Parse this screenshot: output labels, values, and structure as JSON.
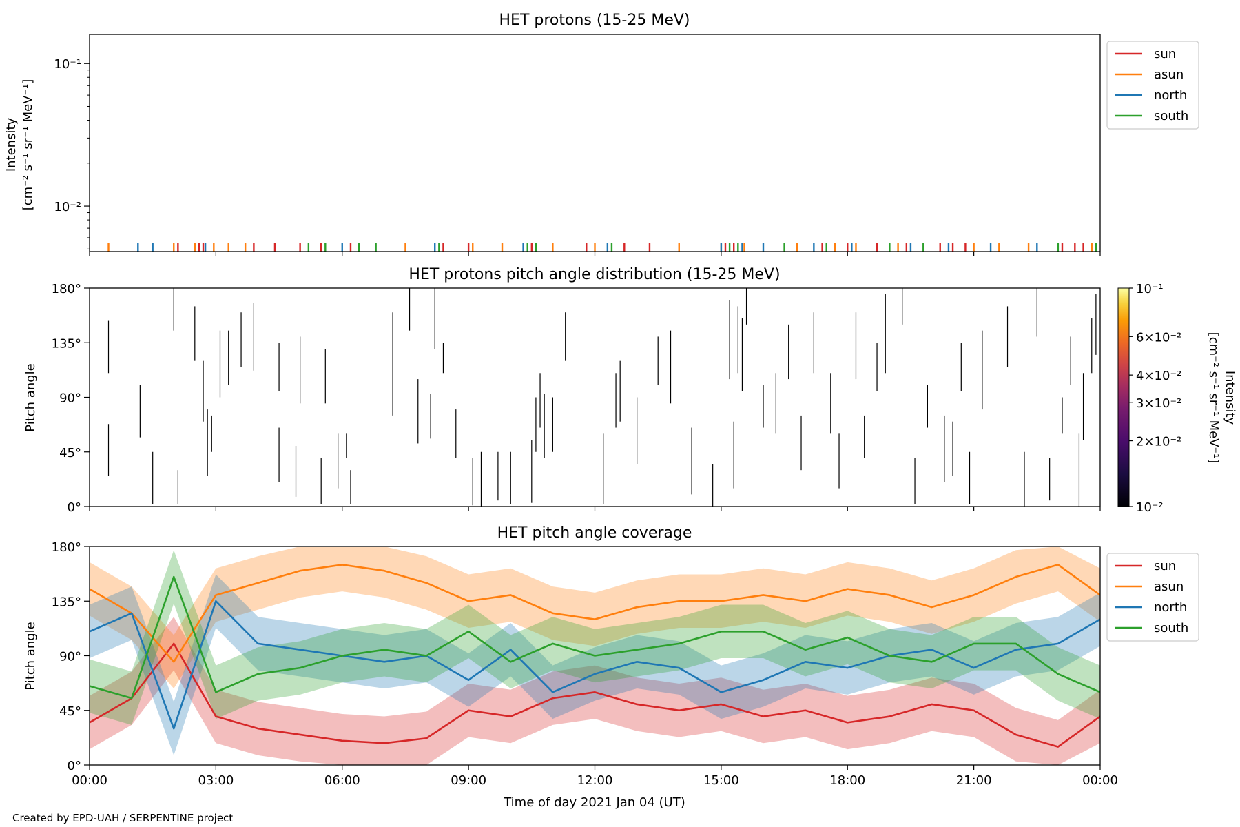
{
  "footer": {
    "credit": "Created by EPD-UAH / SERPENTINE project"
  },
  "colors": {
    "sun": "#d62728",
    "asun": "#ff7f0e",
    "north": "#1f77b4",
    "south": "#2ca02c"
  },
  "chart_data": [
    {
      "type": "line",
      "title": "HET protons (15-25 MeV)",
      "ylabel_lines": [
        "Intensity",
        "[cm⁻² s⁻¹ sr⁻¹ MeV⁻¹]"
      ],
      "yscale": "log",
      "ylim": [
        0.0048,
        0.16
      ],
      "yticks": [
        {
          "value": 0.01,
          "label": "10⁻²"
        },
        {
          "value": 0.1,
          "label": "10⁻¹"
        }
      ],
      "xlim_hours": [
        0,
        24
      ],
      "legend": {
        "placement": "outside-right-top",
        "entries": [
          "sun",
          "asun",
          "north",
          "south"
        ]
      },
      "series": [
        {
          "name": "sun",
          "color": "#d62728",
          "y_value": 0.0055,
          "hours": [
            2.1,
            2.6,
            2.7,
            3.9,
            4.4,
            5.0,
            5.5,
            6.2,
            8.4,
            9.0,
            10.5,
            11.8,
            12.7,
            13.3,
            15.1,
            15.3,
            17.4,
            18.0,
            18.7,
            19.4,
            20.2,
            20.5,
            20.8,
            23.1,
            23.4,
            23.6
          ]
        },
        {
          "name": "asun",
          "color": "#ff7f0e",
          "y_value": 0.0055,
          "hours": [
            0.45,
            2.0,
            2.5,
            2.95,
            3.3,
            3.7,
            7.5,
            9.1,
            9.8,
            11.0,
            12.0,
            14.0,
            15.0,
            15.55,
            16.8,
            17.7,
            18.2,
            19.2,
            21.0,
            21.6,
            22.3,
            23.8
          ]
        },
        {
          "name": "north",
          "color": "#1f77b4",
          "y_value": 0.0055,
          "hours": [
            1.15,
            1.5,
            2.75,
            6.0,
            8.2,
            10.3,
            12.3,
            15.0,
            15.5,
            16.0,
            17.2,
            18.1,
            19.5,
            20.4,
            21.4,
            22.5
          ]
        },
        {
          "name": "south",
          "color": "#2ca02c",
          "y_value": 0.0055,
          "hours": [
            5.2,
            5.6,
            6.4,
            6.8,
            8.3,
            10.4,
            10.6,
            12.4,
            15.2,
            15.4,
            16.5,
            17.5,
            19.0,
            19.8,
            23.0,
            23.9
          ]
        }
      ]
    },
    {
      "type": "heatmap",
      "title": "HET protons pitch angle distribution (15-25 MeV)",
      "ylabel": "Pitch angle",
      "ylim": [
        0,
        180
      ],
      "yticks": [
        "0°",
        "45°",
        "90°",
        "135°",
        "180°"
      ],
      "xlim_hours": [
        0,
        24
      ],
      "colorbar": {
        "label_lines": [
          "Intensity",
          "[cm⁻² s⁻¹ sr⁻¹ MeV⁻¹]"
        ],
        "scale": "log",
        "range": [
          0.01,
          0.1
        ],
        "ticks": [
          {
            "value": 0.01,
            "label": "10⁻²"
          },
          {
            "value": 0.02,
            "label": "2×10⁻²"
          },
          {
            "value": 0.03,
            "label": "3×10⁻²"
          },
          {
            "value": 0.04,
            "label": "4×10⁻²"
          },
          {
            "value": 0.06,
            "label": "6×10⁻²"
          },
          {
            "value": 0.1,
            "label": "10⁻¹"
          }
        ]
      },
      "segments": [
        [
          0.45,
          110,
          153
        ],
        [
          0.45,
          25,
          68
        ],
        [
          1.2,
          57,
          100
        ],
        [
          1.5,
          2,
          45
        ],
        [
          2.0,
          145,
          180
        ],
        [
          2.1,
          2,
          30
        ],
        [
          2.5,
          120,
          165
        ],
        [
          2.7,
          70,
          120
        ],
        [
          2.8,
          25,
          80
        ],
        [
          2.9,
          45,
          75
        ],
        [
          3.1,
          90,
          145
        ],
        [
          3.3,
          100,
          145
        ],
        [
          3.6,
          115,
          160
        ],
        [
          3.9,
          112,
          168
        ],
        [
          4.5,
          95,
          135
        ],
        [
          4.5,
          20,
          65
        ],
        [
          4.9,
          8,
          50
        ],
        [
          5.0,
          85,
          140
        ],
        [
          5.5,
          2,
          40
        ],
        [
          5.6,
          85,
          130
        ],
        [
          5.9,
          15,
          60
        ],
        [
          6.1,
          40,
          60
        ],
        [
          6.2,
          2,
          30
        ],
        [
          7.2,
          75,
          160
        ],
        [
          7.6,
          145,
          180
        ],
        [
          7.8,
          52,
          105
        ],
        [
          8.1,
          56,
          93
        ],
        [
          8.2,
          130,
          180
        ],
        [
          8.4,
          110,
          135
        ],
        [
          8.7,
          40,
          80
        ],
        [
          9.1,
          1,
          40
        ],
        [
          9.3,
          0,
          45
        ],
        [
          9.7,
          5,
          45
        ],
        [
          10.0,
          2,
          45
        ],
        [
          10.5,
          3,
          55
        ],
        [
          10.6,
          45,
          90
        ],
        [
          10.7,
          65,
          110
        ],
        [
          10.8,
          40,
          93
        ],
        [
          11.0,
          45,
          90
        ],
        [
          11.3,
          120,
          160
        ],
        [
          12.2,
          2,
          60
        ],
        [
          12.5,
          65,
          110
        ],
        [
          12.6,
          70,
          120
        ],
        [
          13.0,
          35,
          90
        ],
        [
          13.5,
          100,
          140
        ],
        [
          13.8,
          85,
          145
        ],
        [
          14.3,
          10,
          65
        ],
        [
          14.8,
          0,
          35
        ],
        [
          15.2,
          105,
          170
        ],
        [
          15.3,
          15,
          70
        ],
        [
          15.4,
          110,
          165
        ],
        [
          15.5,
          95,
          155
        ],
        [
          15.6,
          150,
          180
        ],
        [
          16.0,
          65,
          100
        ],
        [
          16.3,
          60,
          110
        ],
        [
          16.6,
          105,
          150
        ],
        [
          16.9,
          30,
          75
        ],
        [
          17.2,
          110,
          160
        ],
        [
          17.6,
          60,
          110
        ],
        [
          17.8,
          15,
          60
        ],
        [
          18.2,
          105,
          160
        ],
        [
          18.4,
          40,
          75
        ],
        [
          18.7,
          95,
          135
        ],
        [
          18.9,
          110,
          175
        ],
        [
          19.3,
          150,
          180
        ],
        [
          19.6,
          2,
          40
        ],
        [
          19.9,
          65,
          100
        ],
        [
          20.3,
          20,
          75
        ],
        [
          20.5,
          25,
          70
        ],
        [
          20.7,
          95,
          135
        ],
        [
          20.9,
          2,
          45
        ],
        [
          21.2,
          80,
          145
        ],
        [
          21.8,
          115,
          165
        ],
        [
          22.2,
          0,
          45
        ],
        [
          22.5,
          140,
          180
        ],
        [
          22.8,
          5,
          40
        ],
        [
          23.1,
          60,
          90
        ],
        [
          23.3,
          100,
          140
        ],
        [
          23.5,
          0,
          60
        ],
        [
          23.6,
          55,
          110
        ],
        [
          23.8,
          110,
          155
        ],
        [
          23.9,
          125,
          175
        ]
      ]
    },
    {
      "type": "area",
      "title": "HET pitch angle coverage",
      "xlabel": "Time of day 2021 Jan 04 (UT)",
      "ylabel": "Pitch angle",
      "ylim": [
        0,
        180
      ],
      "yticks": [
        "0°",
        "45°",
        "90°",
        "135°",
        "180°"
      ],
      "xticks": [
        "00:00",
        "03:00",
        "06:00",
        "09:00",
        "12:00",
        "15:00",
        "18:00",
        "21:00",
        "00:00"
      ],
      "xlim_hours": [
        0,
        24
      ],
      "band_half_width_deg": 22,
      "legend": {
        "placement": "outside-right-top",
        "entries": [
          "sun",
          "asun",
          "north",
          "south"
        ]
      },
      "x_hours": [
        0,
        1,
        2,
        3,
        4,
        5,
        6,
        7,
        8,
        9,
        10,
        11,
        12,
        13,
        14,
        15,
        16,
        17,
        18,
        19,
        20,
        21,
        22,
        23,
        24
      ],
      "series": [
        {
          "name": "sun",
          "color": "#d62728",
          "values": [
            35,
            55,
            100,
            40,
            30,
            25,
            20,
            18,
            22,
            45,
            40,
            55,
            60,
            50,
            45,
            50,
            40,
            45,
            35,
            40,
            50,
            45,
            25,
            15,
            40
          ]
        },
        {
          "name": "asun",
          "color": "#ff7f0e",
          "values": [
            145,
            125,
            85,
            140,
            150,
            160,
            165,
            160,
            150,
            135,
            140,
            125,
            120,
            130,
            135,
            135,
            140,
            135,
            145,
            140,
            130,
            140,
            155,
            165,
            140
          ]
        },
        {
          "name": "north",
          "color": "#1f77b4",
          "values": [
            110,
            125,
            30,
            135,
            100,
            95,
            90,
            85,
            90,
            70,
            95,
            60,
            75,
            85,
            80,
            60,
            70,
            85,
            80,
            90,
            95,
            80,
            95,
            100,
            120
          ]
        },
        {
          "name": "south",
          "color": "#2ca02c",
          "values": [
            65,
            55,
            155,
            60,
            75,
            80,
            90,
            95,
            90,
            110,
            85,
            100,
            90,
            95,
            100,
            110,
            110,
            95,
            105,
            90,
            85,
            100,
            100,
            75,
            60
          ]
        }
      ]
    }
  ]
}
